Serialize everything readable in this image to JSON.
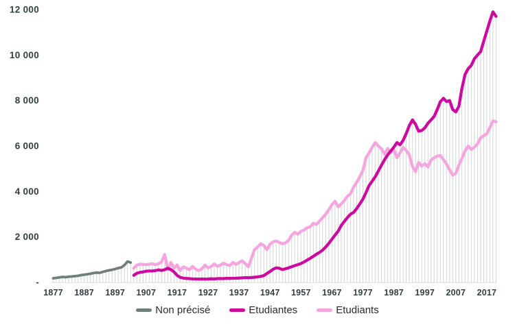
{
  "page": {
    "background": "#ffffff"
  },
  "axis": {
    "text_color": "#31403e",
    "hatch_color": "#d3d7d5",
    "baseline_color": "#d8dcda"
  },
  "legend": {
    "items": [
      {
        "label": "Non précisé",
        "color": "#6f7f7c"
      },
      {
        "label": "Etudiantes",
        "color": "#cc0a9e"
      },
      {
        "label": "Etudiants",
        "color": "#f5a6df"
      }
    ]
  },
  "chart_data": {
    "type": "line",
    "title": "",
    "xlabel": "",
    "ylabel": "",
    "x_range": [
      1877,
      2020
    ],
    "x_step_years": 1,
    "ylim": [
      0,
      12000
    ],
    "grid": "no horizontal gridlines; thin vertical hatch line per year from baseline up to the highest series value",
    "legend_position": "bottom-center",
    "yticks": [
      {
        "value": 0,
        "label": "-"
      },
      {
        "value": 2000,
        "label": "2 000"
      },
      {
        "value": 4000,
        "label": "4 000"
      },
      {
        "value": 6000,
        "label": "6 000"
      },
      {
        "value": 8000,
        "label": "8 000"
      },
      {
        "value": 10000,
        "label": "10 000"
      },
      {
        "value": 12000,
        "label": "12 000"
      }
    ],
    "xticks": [
      1877,
      1887,
      1897,
      1907,
      1917,
      1927,
      1937,
      1947,
      1957,
      1967,
      1977,
      1987,
      1997,
      2007,
      2017
    ],
    "series": [
      {
        "name": "Non précisé",
        "color": "#6f7f7c",
        "line_width": 3.8,
        "start_year": 1877,
        "values": [
          180,
          200,
          220,
          240,
          230,
          250,
          260,
          275,
          290,
          320,
          340,
          360,
          380,
          410,
          430,
          420,
          460,
          500,
          530,
          555,
          590,
          630,
          660,
          760,
          920,
          870
        ]
      },
      {
        "name": "Etudiantes",
        "color": "#cc0a9e",
        "line_width": 4.3,
        "start_year": 1903,
        "values": [
          310,
          400,
          440,
          460,
          490,
          500,
          505,
          520,
          550,
          525,
          560,
          620,
          560,
          460,
          310,
          220,
          190,
          175,
          165,
          155,
          150,
          145,
          150,
          145,
          150,
          160,
          150,
          165,
          170,
          165,
          180,
          175,
          180,
          185,
          190,
          200,
          210,
          205,
          215,
          225,
          240,
          265,
          300,
          390,
          480,
          580,
          640,
          620,
          565,
          600,
          640,
          690,
          740,
          780,
          830,
          900,
          980,
          1060,
          1150,
          1240,
          1320,
          1420,
          1560,
          1720,
          1900,
          2080,
          2250,
          2500,
          2680,
          2850,
          3000,
          3080,
          3250,
          3450,
          3660,
          3950,
          4260,
          4450,
          4650,
          4900,
          5160,
          5400,
          5610,
          5780,
          5950,
          6150,
          6050,
          6250,
          6550,
          6900,
          7150,
          6950,
          6650,
          6680,
          6800,
          7000,
          7150,
          7300,
          7600,
          7950,
          8100,
          7950,
          8000,
          7600,
          7500,
          7750,
          8550,
          9150,
          9400,
          9550,
          9840,
          10000,
          10150,
          10600,
          11050,
          11500,
          11900,
          11700
        ]
      },
      {
        "name": "Etudiants",
        "color": "#f5a6df",
        "line_width": 4.3,
        "start_year": 1903,
        "values": [
          620,
          760,
          800,
          790,
          780,
          800,
          820,
          780,
          820,
          900,
          1230,
          560,
          880,
          620,
          770,
          520,
          680,
          620,
          560,
          700,
          580,
          520,
          600,
          760,
          640,
          700,
          810,
          710,
          760,
          840,
          780,
          740,
          880,
          790,
          870,
          950,
          830,
          690,
          1050,
          1440,
          1560,
          1700,
          1620,
          1440,
          1680,
          1780,
          1820,
          1760,
          1700,
          1740,
          1850,
          2080,
          2200,
          2120,
          2250,
          2300,
          2400,
          2450,
          2600,
          2550,
          2700,
          2850,
          3000,
          3200,
          3420,
          3570,
          3330,
          3450,
          3600,
          3790,
          3900,
          4190,
          4400,
          4650,
          4920,
          5480,
          5700,
          5940,
          6150,
          6000,
          5880,
          5640,
          5890,
          5700,
          5850,
          5480,
          5700,
          5940,
          5800,
          5600,
          5100,
          4870,
          5280,
          5120,
          5220,
          5080,
          5380,
          5480,
          5550,
          5580,
          5400,
          5200,
          4950,
          4720,
          4800,
          5160,
          5460,
          5790,
          6000,
          5850,
          5950,
          6090,
          6360,
          6450,
          6540,
          6810,
          7100,
          7060
        ]
      }
    ]
  }
}
